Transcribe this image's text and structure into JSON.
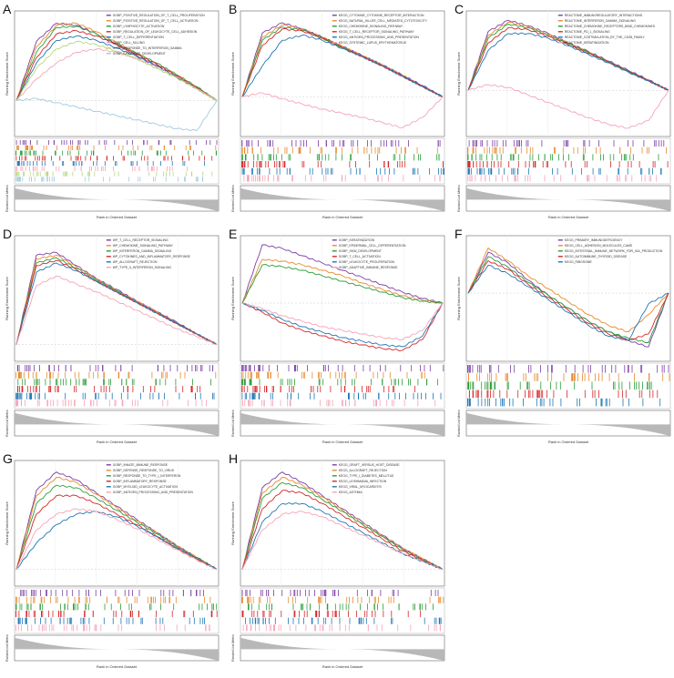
{
  "figure": {
    "panel_letters": [
      "A",
      "B",
      "C",
      "D",
      "E",
      "F",
      "G",
      "H"
    ]
  },
  "axis_labels": {
    "y_top": "Running Enrichment Score",
    "y_bottom": "Ranked List Metric",
    "x": "Rank in Ordered Dataset"
  },
  "palette": [
    "#7b3fa6",
    "#e88a2c",
    "#2a9d3a",
    "#d62728",
    "#1f77b4",
    "#f4a4b6",
    "#b6d77a",
    "#9ecae1",
    "#f5b77a",
    "#bbbbbb"
  ],
  "chart_data": [
    {
      "panel": "A",
      "type": "line",
      "x": [
        0,
        0.1,
        0.2,
        0.3,
        0.4,
        0.5,
        0.6,
        0.7,
        0.8,
        0.9,
        1
      ],
      "ylim": [
        -0.3,
        0.8
      ],
      "series": [
        {
          "name": "GOBP_POSITIVE_REGULATION_OF_T_CELL_PROLIFERATION",
          "values": [
            0,
            0.55,
            0.72,
            0.7,
            0.62,
            0.52,
            0.42,
            0.33,
            0.22,
            0.12,
            0
          ]
        },
        {
          "name": "GOBP_POSITIVE_REGULATION_OF_T_CELL_ACTIVATION",
          "values": [
            0,
            0.5,
            0.7,
            0.72,
            0.64,
            0.54,
            0.44,
            0.34,
            0.24,
            0.12,
            0
          ]
        },
        {
          "name": "GOBP_LYMPHOCYTE_ACTIVATION",
          "values": [
            0,
            0.45,
            0.68,
            0.69,
            0.62,
            0.53,
            0.44,
            0.35,
            0.24,
            0.13,
            0
          ]
        },
        {
          "name": "GOBP_REGULATION_OF_LEUKOCYTE_CELL_ADHESION",
          "values": [
            0,
            0.4,
            0.62,
            0.65,
            0.6,
            0.52,
            0.43,
            0.34,
            0.23,
            0.12,
            0
          ]
        },
        {
          "name": "GOBP_T_CELL_DIFFERENTIATION",
          "values": [
            0,
            0.35,
            0.56,
            0.6,
            0.56,
            0.49,
            0.41,
            0.32,
            0.22,
            0.11,
            0
          ]
        },
        {
          "name": "GOBP_CELL_KILLING",
          "values": [
            0,
            0.2,
            0.35,
            0.45,
            0.48,
            0.45,
            0.39,
            0.31,
            0.22,
            0.11,
            0
          ]
        },
        {
          "name": "GOBP_RESPONSE_TO_INTERFERON_GAMMA",
          "values": [
            0,
            0.3,
            0.48,
            0.55,
            0.52,
            0.46,
            0.39,
            0.3,
            0.21,
            0.11,
            0
          ]
        },
        {
          "name": "GOBP_EPIDERMIS_DEVELOPMENT",
          "values": [
            0,
            0.02,
            -0.02,
            -0.06,
            -0.1,
            -0.14,
            -0.18,
            -0.22,
            -0.26,
            -0.28,
            0
          ]
        }
      ]
    },
    {
      "panel": "B",
      "type": "line",
      "x": [
        0,
        0.1,
        0.2,
        0.3,
        0.4,
        0.5,
        0.6,
        0.7,
        0.8,
        0.9,
        1
      ],
      "ylim": [
        -0.35,
        0.8
      ],
      "series": [
        {
          "name": "KEGG_CYTOKINE_CYTOKINE_RECEPTOR_INTERACTION",
          "values": [
            0,
            0.62,
            0.72,
            0.66,
            0.58,
            0.49,
            0.4,
            0.31,
            0.21,
            0.11,
            0
          ]
        },
        {
          "name": "KEGG_NATURAL_KILLER_CELL_MEDIATED_CYTOTOXICITY",
          "values": [
            0,
            0.58,
            0.7,
            0.66,
            0.58,
            0.49,
            0.4,
            0.31,
            0.21,
            0.1,
            0
          ]
        },
        {
          "name": "KEGG_CHEMOKINE_SIGNALING_PATHWAY",
          "values": [
            0,
            0.55,
            0.68,
            0.65,
            0.57,
            0.48,
            0.39,
            0.3,
            0.2,
            0.1,
            0
          ]
        },
        {
          "name": "KEGG_T_CELL_RECEPTOR_SIGNALING_PATHWAY",
          "values": [
            0,
            0.5,
            0.66,
            0.64,
            0.57,
            0.48,
            0.39,
            0.3,
            0.2,
            0.1,
            0
          ]
        },
        {
          "name": "KEGG_ANTIGEN_PROCESSING_AND_PRESENTATION",
          "values": [
            0,
            0.3,
            0.55,
            0.6,
            0.55,
            0.47,
            0.39,
            0.3,
            0.2,
            0.1,
            0
          ]
        },
        {
          "name": "KEGG_SYSTEMIC_LUPUS_ERYTHEMATOSUS",
          "values": [
            0,
            0.04,
            -0.02,
            -0.07,
            -0.12,
            -0.16,
            -0.2,
            -0.25,
            -0.3,
            -0.2,
            0
          ]
        }
      ]
    },
    {
      "panel": "C",
      "type": "line",
      "x": [
        0,
        0.1,
        0.2,
        0.3,
        0.4,
        0.5,
        0.6,
        0.7,
        0.8,
        0.9,
        1
      ],
      "ylim": [
        -0.45,
        0.8
      ],
      "series": [
        {
          "name": "REACTOME_IMMUNOREGULATORY_INTERACTIONS",
          "values": [
            0,
            0.62,
            0.74,
            0.68,
            0.6,
            0.5,
            0.41,
            0.31,
            0.21,
            0.11,
            0
          ]
        },
        {
          "name": "REACTOME_INTERFERON_GAMMA_SIGNALING",
          "values": [
            0,
            0.58,
            0.72,
            0.67,
            0.59,
            0.5,
            0.4,
            0.3,
            0.2,
            0.1,
            0
          ]
        },
        {
          "name": "REACTOME_CHEMOKINE_RECEPTORS_BIND_CHEMOKINES",
          "values": [
            0,
            0.55,
            0.7,
            0.66,
            0.58,
            0.49,
            0.4,
            0.3,
            0.2,
            0.1,
            0
          ]
        },
        {
          "name": "REACTOME_PD_1_SIGNALING",
          "values": [
            0,
            0.5,
            0.66,
            0.64,
            0.57,
            0.48,
            0.39,
            0.3,
            0.2,
            0.1,
            0
          ]
        },
        {
          "name": "REACTOME_COSTIMULATION_BY_THE_CD28_FAMILY",
          "values": [
            0,
            0.42,
            0.6,
            0.6,
            0.55,
            0.47,
            0.38,
            0.29,
            0.19,
            0.1,
            0
          ]
        },
        {
          "name": "REACTOME_KERATINIZATION",
          "values": [
            0,
            0.06,
            0.03,
            -0.05,
            -0.13,
            -0.21,
            -0.29,
            -0.36,
            -0.4,
            -0.32,
            0
          ]
        }
      ]
    },
    {
      "panel": "D",
      "type": "line",
      "x": [
        0,
        0.1,
        0.2,
        0.3,
        0.4,
        0.5,
        0.6,
        0.7,
        0.8,
        0.9,
        1
      ],
      "ylim": [
        -0.1,
        0.8
      ],
      "series": [
        {
          "name": "WP_T_CELL_RECEPTOR_SIGNALING",
          "values": [
            0,
            0.68,
            0.7,
            0.6,
            0.5,
            0.42,
            0.33,
            0.25,
            0.17,
            0.08,
            0
          ]
        },
        {
          "name": "WP_CHEMOKINE_SIGNALING_PATHWAY",
          "values": [
            0,
            0.65,
            0.68,
            0.59,
            0.5,
            0.41,
            0.33,
            0.25,
            0.16,
            0.08,
            0
          ]
        },
        {
          "name": "WP_INTERFERON_GAMMA_SIGNALING",
          "values": [
            0,
            0.62,
            0.66,
            0.58,
            0.49,
            0.41,
            0.32,
            0.24,
            0.16,
            0.08,
            0
          ]
        },
        {
          "name": "WP_CYTOKINES_AND_INFLAMMATORY_RESPONSE",
          "values": [
            0,
            0.6,
            0.64,
            0.57,
            0.48,
            0.4,
            0.32,
            0.24,
            0.16,
            0.08,
            0
          ]
        },
        {
          "name": "WP_ALLOGRAFT_REJECTION",
          "values": [
            0,
            0.55,
            0.62,
            0.56,
            0.48,
            0.4,
            0.32,
            0.24,
            0.16,
            0.08,
            0
          ]
        },
        {
          "name": "WP_TYPE_II_INTERFERON_SIGNALING",
          "values": [
            0,
            0.45,
            0.52,
            0.46,
            0.4,
            0.33,
            0.26,
            0.19,
            0.12,
            0.06,
            0
          ]
        }
      ]
    },
    {
      "panel": "E",
      "type": "line",
      "x": [
        0,
        0.1,
        0.2,
        0.3,
        0.4,
        0.5,
        0.6,
        0.7,
        0.8,
        0.9,
        1
      ],
      "ylim": [
        -0.6,
        0.7
      ],
      "series": [
        {
          "name": "GOBP_KERATINIZATION",
          "values": [
            0,
            0.64,
            0.6,
            0.52,
            0.44,
            0.36,
            0.28,
            0.2,
            0.12,
            0.05,
            0
          ]
        },
        {
          "name": "GOBP_EPIDERMAL_CELL_DIFFERENTIATION",
          "values": [
            0,
            0.48,
            0.46,
            0.42,
            0.36,
            0.3,
            0.22,
            0.15,
            0.08,
            0.03,
            0
          ]
        },
        {
          "name": "GOBP_SKIN_DEVELOPMENT",
          "values": [
            0,
            0.42,
            0.4,
            0.36,
            0.3,
            0.24,
            0.18,
            0.12,
            0.06,
            0.02,
            0
          ]
        },
        {
          "name": "GOBP_T_CELL_ACTIVATION",
          "values": [
            0,
            -0.1,
            -0.22,
            -0.3,
            -0.36,
            -0.42,
            -0.46,
            -0.5,
            -0.52,
            -0.4,
            0
          ]
        },
        {
          "name": "GOBP_LEUKOCYTE_PROLIFERATION",
          "values": [
            0,
            -0.08,
            -0.18,
            -0.26,
            -0.32,
            -0.38,
            -0.42,
            -0.46,
            -0.48,
            -0.36,
            0
          ]
        },
        {
          "name": "GOBP_ADAPTIVE_IMMUNE_RESPONSE",
          "values": [
            0,
            -0.06,
            -0.14,
            -0.2,
            -0.26,
            -0.3,
            -0.34,
            -0.38,
            -0.4,
            -0.3,
            0
          ]
        }
      ]
    },
    {
      "panel": "F",
      "type": "line",
      "x": [
        0,
        0.1,
        0.2,
        0.3,
        0.4,
        0.5,
        0.6,
        0.7,
        0.8,
        0.9,
        1
      ],
      "ylim": [
        -0.6,
        0.5
      ],
      "series": [
        {
          "name": "KEGG_PRIMARY_IMMUNODEFICIENCY",
          "values": [
            0,
            0.38,
            0.28,
            0.12,
            -0.02,
            -0.14,
            -0.26,
            -0.36,
            -0.44,
            -0.5,
            0
          ]
        },
        {
          "name": "KEGG_CELL_ADHESION_MOLECULES_CAMS",
          "values": [
            0,
            0.42,
            0.3,
            0.16,
            0.04,
            -0.08,
            -0.2,
            -0.3,
            -0.36,
            -0.2,
            0
          ]
        },
        {
          "name": "KEGG_INTESTINAL_IMMUNE_NETWORK_FOR_IGA_PRODUCTION",
          "values": [
            0,
            0.34,
            0.24,
            0.1,
            -0.02,
            -0.14,
            -0.26,
            -0.36,
            -0.42,
            -0.46,
            0
          ]
        },
        {
          "name": "KEGG_AUTOIMMUNE_THYROID_DISEASE",
          "values": [
            0,
            0.3,
            0.22,
            0.08,
            -0.04,
            -0.16,
            -0.28,
            -0.38,
            -0.44,
            -0.38,
            0
          ]
        },
        {
          "name": "KEGG_RIBOSOME",
          "values": [
            0,
            0.26,
            0.18,
            0.06,
            -0.06,
            -0.18,
            -0.3,
            -0.4,
            -0.44,
            -0.1,
            0
          ]
        }
      ]
    },
    {
      "panel": "G",
      "type": "line",
      "x": [
        0,
        0.1,
        0.2,
        0.3,
        0.4,
        0.5,
        0.6,
        0.7,
        0.8,
        0.9,
        1
      ],
      "ylim": [
        -0.1,
        0.8
      ],
      "series": [
        {
          "name": "GOBP_INNATE_IMMUNE_RESPONSE",
          "values": [
            0,
            0.6,
            0.74,
            0.68,
            0.58,
            0.48,
            0.38,
            0.28,
            0.18,
            0.09,
            0
          ]
        },
        {
          "name": "GOBP_DEFENSE_RESPONSE_TO_VIRUS",
          "values": [
            0,
            0.56,
            0.7,
            0.66,
            0.57,
            0.47,
            0.37,
            0.28,
            0.18,
            0.09,
            0
          ]
        },
        {
          "name": "GOBP_RESPONSE_TO_TYPE_I_INTERFERON",
          "values": [
            0,
            0.5,
            0.64,
            0.62,
            0.54,
            0.45,
            0.36,
            0.27,
            0.17,
            0.09,
            0
          ]
        },
        {
          "name": "GOBP_INFLAMMATORY_RESPONSE",
          "values": [
            0,
            0.42,
            0.56,
            0.56,
            0.5,
            0.42,
            0.34,
            0.25,
            0.16,
            0.08,
            0
          ]
        },
        {
          "name": "GOBP_MYELOID_LEUKOCYTE_ACTIVATION",
          "values": [
            0,
            0.2,
            0.34,
            0.42,
            0.44,
            0.4,
            0.33,
            0.25,
            0.16,
            0.08,
            0
          ]
        },
        {
          "name": "GOBP_ANTIGEN_PROCESSING_AND_PRESENTATION",
          "values": [
            0,
            0.3,
            0.42,
            0.46,
            0.44,
            0.38,
            0.31,
            0.23,
            0.15,
            0.07,
            0
          ]
        }
      ]
    },
    {
      "panel": "H",
      "type": "line",
      "x": [
        0,
        0.1,
        0.2,
        0.3,
        0.4,
        0.5,
        0.6,
        0.7,
        0.8,
        0.9,
        1
      ],
      "ylim": [
        -0.1,
        0.8
      ],
      "series": [
        {
          "name": "KEGG_GRAFT_VERSUS_HOST_DISEASE",
          "values": [
            0,
            0.62,
            0.74,
            0.66,
            0.56,
            0.46,
            0.36,
            0.26,
            0.16,
            0.08,
            0
          ]
        },
        {
          "name": "KEGG_ALLOGRAFT_REJECTION",
          "values": [
            0,
            0.58,
            0.7,
            0.64,
            0.55,
            0.45,
            0.35,
            0.25,
            0.16,
            0.08,
            0
          ]
        },
        {
          "name": "KEGG_TYPE_I_DIABETES_MELLITUS",
          "values": [
            0,
            0.54,
            0.66,
            0.62,
            0.53,
            0.44,
            0.34,
            0.25,
            0.15,
            0.07,
            0
          ]
        },
        {
          "name": "KEGG_LEISHMANIA_INFECTION",
          "values": [
            0,
            0.46,
            0.6,
            0.58,
            0.5,
            0.41,
            0.32,
            0.23,
            0.14,
            0.07,
            0
          ]
        },
        {
          "name": "KEGG_VIRAL_MYOCARDITIS",
          "values": [
            0,
            0.36,
            0.5,
            0.5,
            0.44,
            0.36,
            0.28,
            0.2,
            0.12,
            0.06,
            0
          ]
        },
        {
          "name": "KEGG_ASTHMA",
          "values": [
            0,
            0.3,
            0.42,
            0.44,
            0.4,
            0.33,
            0.26,
            0.19,
            0.12,
            0.06,
            0
          ]
        }
      ]
    }
  ]
}
